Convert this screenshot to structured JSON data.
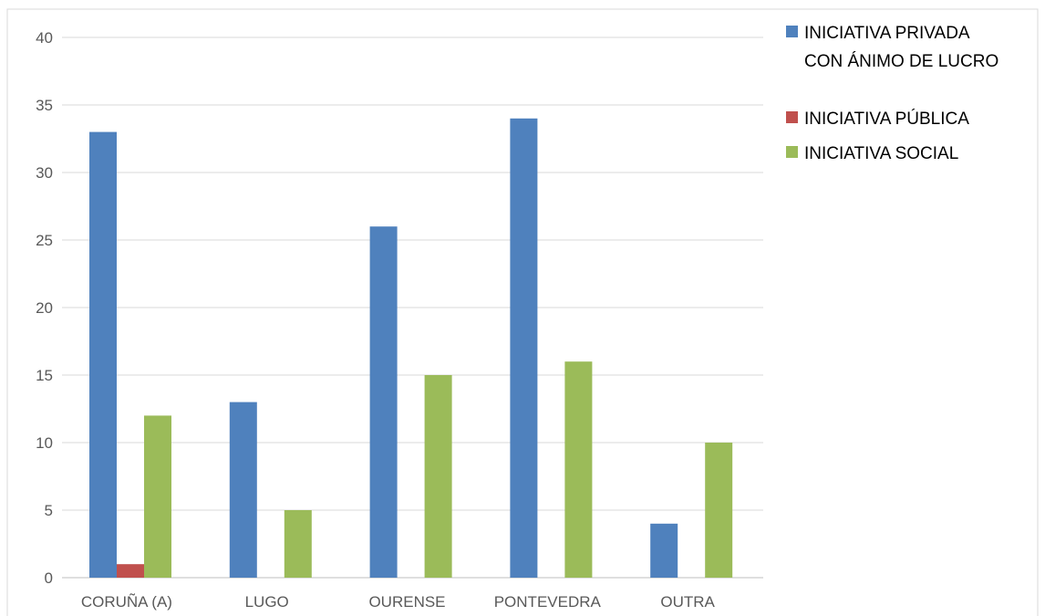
{
  "chart_data": {
    "type": "bar",
    "categories": [
      "CORUÑA (A)",
      "LUGO",
      "OURENSE",
      "PONTEVEDRA",
      "OUTRA"
    ],
    "series": [
      {
        "name": "INICIATIVA PRIVADA CON ÁNIMO DE LUCRO",
        "legend_lines": [
          "INICIATIVA PRIVADA",
          "CON ÁNIMO DE LUCRO"
        ],
        "color": "#4f81bd",
        "values": [
          33,
          13,
          26,
          34,
          4
        ]
      },
      {
        "name": "INICIATIVA PÚBLICA",
        "legend_lines": [
          "INICIATIVA PÚBLICA"
        ],
        "color": "#c0504d",
        "values": [
          1,
          0,
          0,
          0,
          0
        ]
      },
      {
        "name": "INICIATIVA SOCIAL",
        "legend_lines": [
          "INICIATIVA SOCIAL"
        ],
        "color": "#9bbb59",
        "values": [
          12,
          5,
          15,
          16,
          10
        ]
      }
    ],
    "yticks": [
      0,
      5,
      10,
      15,
      20,
      25,
      30,
      35,
      40
    ],
    "ylim": [
      0,
      40
    ],
    "grid": true,
    "legend_position": "right",
    "title": "",
    "xlabel": "",
    "ylabel": ""
  }
}
